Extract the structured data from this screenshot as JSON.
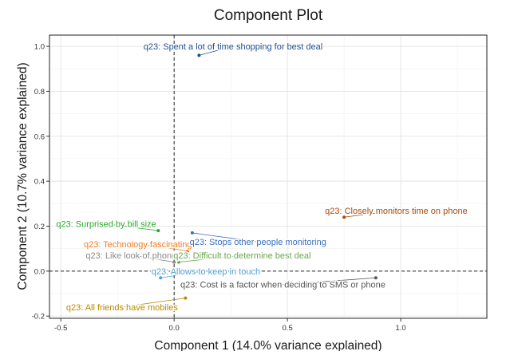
{
  "chart_data": {
    "type": "scatter",
    "title": "Component Plot",
    "xlabel": "Component 1 (14.0% variance explained)",
    "ylabel": "Component 2 (10.7% variance explained)",
    "xlim": [
      -0.55,
      1.38
    ],
    "ylim": [
      -0.21,
      1.05
    ],
    "xticks": [
      -0.5,
      0.0,
      0.5,
      1.0
    ],
    "xtick_labels": [
      "-0.5",
      "0.0",
      "0.5",
      "1.0"
    ],
    "yticks": [
      -0.2,
      0.0,
      0.2,
      0.4,
      0.6,
      0.8,
      1.0
    ],
    "ytick_labels": [
      "-0.2",
      "0.0",
      "0.2",
      "0.4",
      "0.6",
      "0.8",
      "1.0"
    ],
    "grid": true,
    "reference_lines": {
      "x": 0,
      "y": 0,
      "style": "dashed"
    },
    "points": [
      {
        "label": "q23: Spent a lot of time shopping for best deal",
        "x": 0.11,
        "y": 0.96,
        "color": "#1f4e8c",
        "label_x": 0.26,
        "label_y": 1.0
      },
      {
        "label": "q23: Closely monitors time on phone",
        "x": 0.75,
        "y": 0.24,
        "color": "#a84a0a",
        "label_x": 0.98,
        "label_y": 0.27
      },
      {
        "label": "q23: Surprised by bill size",
        "x": -0.07,
        "y": 0.18,
        "color": "#2aa62a",
        "label_x": -0.3,
        "label_y": 0.21
      },
      {
        "label": "q23: Technology fascinating",
        "x": 0.06,
        "y": 0.09,
        "color": "#ef7d22",
        "label_x": -0.16,
        "label_y": 0.12
      },
      {
        "label": "q23: Stops other people monitoring",
        "x": 0.08,
        "y": 0.17,
        "color": "#3a6fbf",
        "label_x": 0.37,
        "label_y": 0.13
      },
      {
        "label": "q23: Like look of phones",
        "x": 0.0,
        "y": 0.04,
        "color": "#8a8a8a",
        "label_x": -0.18,
        "label_y": 0.07
      },
      {
        "label": "q23: Difficult to determine best deal",
        "x": 0.02,
        "y": 0.04,
        "color": "#6aa84f",
        "label_x": 0.3,
        "label_y": 0.07
      },
      {
        "label": "q23: Allows to keep in touch",
        "x": -0.06,
        "y": -0.03,
        "color": "#4f9fd6",
        "label_x": 0.14,
        "label_y": 0.0
      },
      {
        "label": "q23: Cost is a factor when deciding to SMS or phone",
        "x": 0.89,
        "y": -0.03,
        "color": "#555555",
        "label_x": 0.48,
        "label_y": -0.06
      },
      {
        "label": "q23: All friends have mobiles",
        "x": 0.05,
        "y": -0.12,
        "color": "#b58a00",
        "label_x": -0.23,
        "label_y": -0.16
      }
    ]
  }
}
